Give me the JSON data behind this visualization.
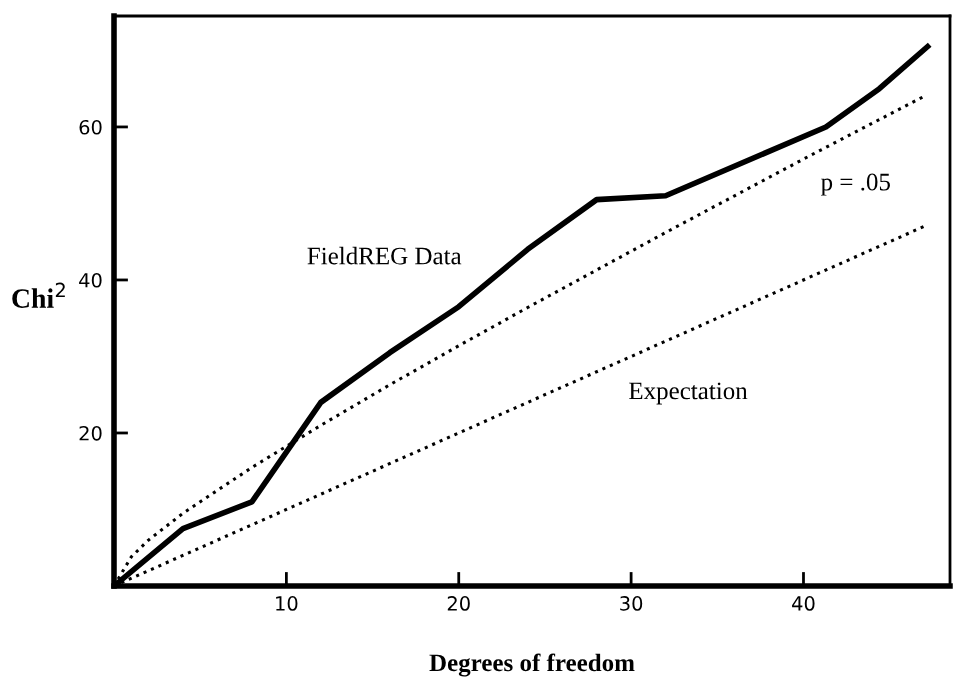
{
  "chart_data": {
    "type": "line",
    "xlabel": "Degrees of freedom",
    "ylabel": "Chi$^{2}$",
    "xlim": [
      0,
      48.5
    ],
    "ylim": [
      0,
      74.5
    ],
    "xticks": [
      10,
      20,
      30,
      40
    ],
    "yticks": [
      20,
      40,
      60
    ],
    "grid": false,
    "legend": false,
    "marker": "none",
    "series": [
      {
        "x": [
          0,
          4,
          8,
          12,
          16,
          20,
          24,
          28,
          32,
          41.3,
          44.4,
          47.2
        ],
        "values": [
          0,
          7.5,
          11,
          24,
          30.5,
          36.5,
          44,
          50.5,
          51,
          60,
          65,
          70.5
        ],
        "color": "#000000",
        "line_style": "solid",
        "name": "FieldREG Data"
      },
      {
        "x": [
          0,
          1,
          2,
          4,
          8,
          12,
          16,
          20,
          24,
          28,
          32,
          36,
          40,
          44,
          47
        ],
        "values": [
          0,
          3.8,
          6,
          9.5,
          15.5,
          21,
          26.3,
          31.4,
          36.4,
          41.3,
          46.2,
          51,
          55.8,
          60.5,
          64
        ],
        "color": "#000000",
        "line_style": "dotted",
        "name": "p = .05"
      },
      {
        "x": [
          0,
          47
        ],
        "values": [
          0,
          47
        ],
        "color": "#000000",
        "line_style": "dotted",
        "name": "Expectation"
      }
    ]
  }
}
